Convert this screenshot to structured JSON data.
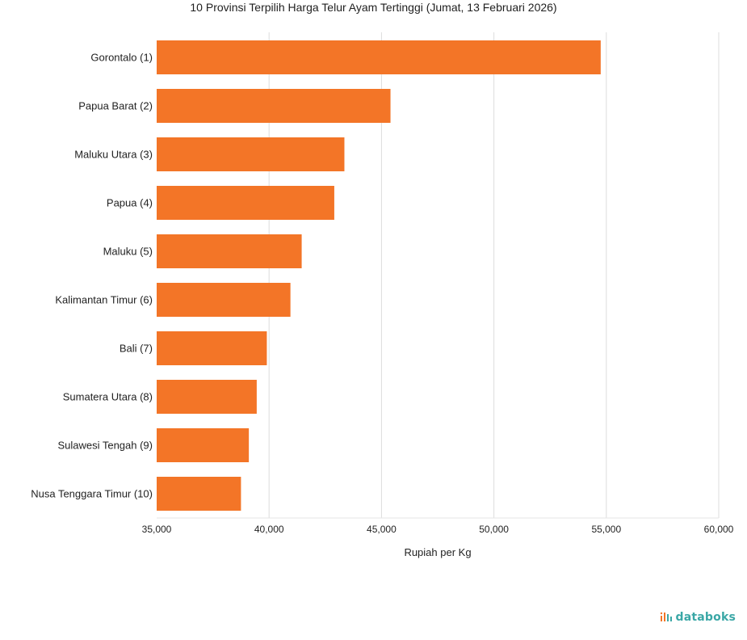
{
  "chart_data": {
    "type": "bar",
    "orientation": "horizontal",
    "title": "10 Provinsi Terpilih Harga Telur Ayam Tertinggi (Jumat, 13 Februari 2026)",
    "xlabel": "Rupiah per Kg",
    "ylabel": "",
    "categories": [
      "Gorontalo (1)",
      "Papua Barat (2)",
      "Maluku Utara (3)",
      "Papua (4)",
      "Maluku (5)",
      "Kalimantan Timur (6)",
      "Bali (7)",
      "Sumatera Utara (8)",
      "Sulawesi Tengah (9)",
      "Nusa Tenggara Timur (10)"
    ],
    "values": [
      54750,
      45400,
      43350,
      42900,
      41450,
      40950,
      39900,
      39450,
      39100,
      38750
    ],
    "xlim": [
      35000,
      60000
    ],
    "xticks": [
      35000,
      40000,
      45000,
      50000,
      55000,
      60000
    ],
    "xtick_labels": [
      "35,000",
      "40,000",
      "45,000",
      "50,000",
      "55,000",
      "60,000"
    ],
    "grid": "vertical",
    "legend": "none",
    "bar_color": "#F37527"
  },
  "branding": {
    "logo_text": "databoks",
    "logo_color": "#3AA7A6",
    "logo_accent": "#F37527"
  }
}
